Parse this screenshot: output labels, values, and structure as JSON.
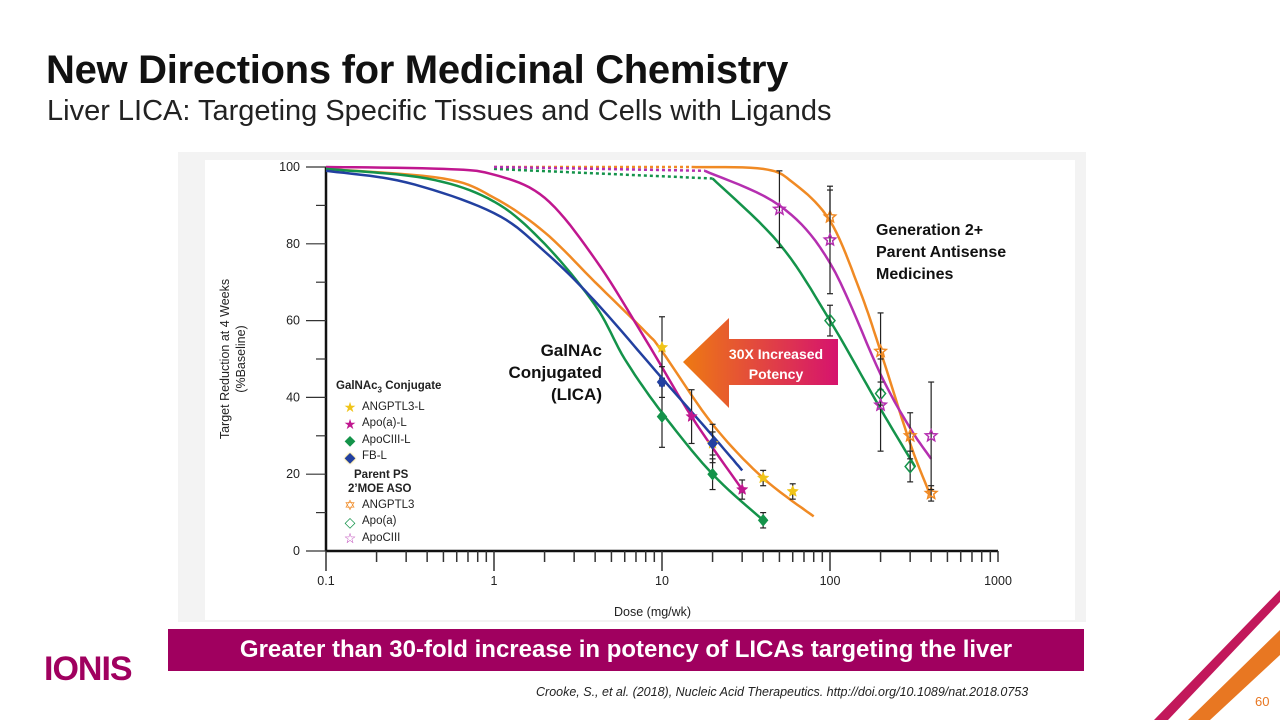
{
  "header": {
    "title": "New Directions for Medicinal Chemistry",
    "subtitle": "Liver LICA: Targeting Specific Tissues and Cells with Ligands"
  },
  "chart_data": {
    "type": "line",
    "xlabel": "Dose (mg/wk)",
    "ylabel_line1": "Target Reduction at 4 Weeks",
    "ylabel_line2": "(%Baseline)",
    "x_scale": "log",
    "xlim": [
      0.1,
      1000
    ],
    "ylim": [
      0,
      100
    ],
    "x_ticks": [
      "0.1",
      "1",
      "10",
      "100",
      "1000"
    ],
    "y_ticks": [
      "0",
      "20",
      "40",
      "60",
      "80",
      "100"
    ],
    "grid": false,
    "legend_placement": "bottom-left",
    "legend": {
      "group1_title": "GalNAc",
      "group1_sub": "3",
      "group1_title_rest": " Conjugate",
      "group2_title_line1": "Parent PS",
      "group2_title_line2": "2’MOE ASO"
    },
    "series": [
      {
        "name": "ANGPTL3-L",
        "group": 1,
        "color": "#f0c419",
        "curve_color": "#f08a24",
        "marker": "star-filled",
        "points": [
          [
            10,
            53,
            8
          ],
          [
            20,
            28,
            5
          ],
          [
            40,
            19,
            2
          ],
          [
            60,
            15.5,
            2
          ]
        ],
        "curve": [
          [
            0.1,
            99.5
          ],
          [
            0.5,
            97
          ],
          [
            1,
            92
          ],
          [
            2,
            83
          ],
          [
            4,
            70
          ],
          [
            8,
            57
          ],
          [
            10,
            52
          ],
          [
            20,
            33
          ],
          [
            40,
            19
          ],
          [
            80,
            9
          ]
        ]
      },
      {
        "name": "Apo(a)-L",
        "group": 1,
        "color": "#c0178f",
        "curve_color": "#c0178f",
        "marker": "star-filled",
        "points": [
          [
            15,
            35,
            7
          ],
          [
            30,
            16,
            2.5
          ]
        ],
        "curve": [
          [
            0.1,
            100
          ],
          [
            0.5,
            99.5
          ],
          [
            1,
            98
          ],
          [
            2,
            92
          ],
          [
            4,
            76
          ],
          [
            8,
            55
          ],
          [
            15,
            35
          ],
          [
            30,
            16
          ]
        ]
      },
      {
        "name": "ApoCIII-L",
        "group": 1,
        "color": "#14934a",
        "curve_color": "#14934a",
        "marker": "diamond-filled",
        "points": [
          [
            10,
            35,
            8
          ],
          [
            20,
            20,
            4
          ],
          [
            40,
            8,
            2
          ]
        ],
        "curve": [
          [
            0.1,
            99.5
          ],
          [
            0.4,
            97
          ],
          [
            1,
            91
          ],
          [
            2,
            80
          ],
          [
            4,
            64
          ],
          [
            6,
            50
          ],
          [
            10,
            36
          ],
          [
            20,
            20
          ],
          [
            40,
            8
          ]
        ]
      },
      {
        "name": "FB-L",
        "group": 1,
        "color": "#2240a0",
        "curve_color": "#2240a0",
        "marker": "diamond-filled",
        "points": [
          [
            10,
            44,
            4
          ],
          [
            20,
            28,
            3
          ]
        ],
        "curve": [
          [
            0.1,
            99
          ],
          [
            0.3,
            96
          ],
          [
            1,
            88
          ],
          [
            2,
            78
          ],
          [
            4,
            65
          ],
          [
            10,
            45
          ],
          [
            20,
            30
          ],
          [
            30,
            21
          ]
        ]
      },
      {
        "name": "ANGPTL3",
        "group": 2,
        "color": "#f08a24",
        "curve_color": "#f08a24",
        "marker": "star-open",
        "points": [
          [
            100,
            87,
            7
          ],
          [
            200,
            52,
            10
          ],
          [
            300,
            30,
            6
          ],
          [
            400,
            15,
            2
          ]
        ],
        "dotted": [
          [
            1,
            100
          ],
          [
            15,
            100
          ]
        ],
        "curve": [
          [
            15,
            100
          ],
          [
            40,
            99.5
          ],
          [
            60,
            96
          ],
          [
            100,
            86
          ],
          [
            150,
            68
          ],
          [
            200,
            52
          ],
          [
            300,
            28
          ],
          [
            400,
            14
          ]
        ]
      },
      {
        "name": "Apo(a)",
        "group": 2,
        "color": "#14934a",
        "curve_color": "#14934a",
        "marker": "diamond-open",
        "points": [
          [
            100,
            60,
            4
          ],
          [
            200,
            41,
            3
          ],
          [
            300,
            22,
            4
          ]
        ],
        "dotted": [
          [
            1,
            99.5
          ],
          [
            20,
            97
          ]
        ],
        "curve": [
          [
            20,
            97
          ],
          [
            50,
            80
          ],
          [
            100,
            60
          ],
          [
            200,
            37
          ],
          [
            320,
            22
          ]
        ]
      },
      {
        "name": "ApoCIII",
        "group": 2,
        "color": "#b52fb0",
        "curve_color": "#b52fb0",
        "marker": "star-open",
        "points": [
          [
            50,
            89,
            10
          ],
          [
            100,
            81,
            14
          ],
          [
            200,
            38,
            12
          ],
          [
            400,
            30,
            14
          ]
        ],
        "dotted": [
          [
            1,
            100
          ],
          [
            18,
            99
          ]
        ],
        "curve": [
          [
            18,
            99
          ],
          [
            50,
            90
          ],
          [
            100,
            75
          ],
          [
            200,
            46
          ],
          [
            300,
            32
          ],
          [
            400,
            24
          ]
        ]
      }
    ],
    "annotations": {
      "galnac_line1": "GalNAc",
      "galnac_line2": "Conjugated",
      "galnac_line3": "(LICA)",
      "gen2_line1": "Generation 2+",
      "gen2_line2": "Parent Antisense",
      "gen2_line3": "Medicines",
      "arrow_line1": "30X Increased",
      "arrow_line2": "Potency"
    }
  },
  "banner": {
    "text": "Greater than 30-fold increase in potency of LICAs targeting the liver",
    "color": "#a0005f"
  },
  "footer": {
    "logo": "IONIS",
    "citation": "Crooke, S., et al. (2018), Nucleic Acid Therapeutics. http://doi.org/10.1089/nat.2018.0753",
    "page_number": "60"
  }
}
